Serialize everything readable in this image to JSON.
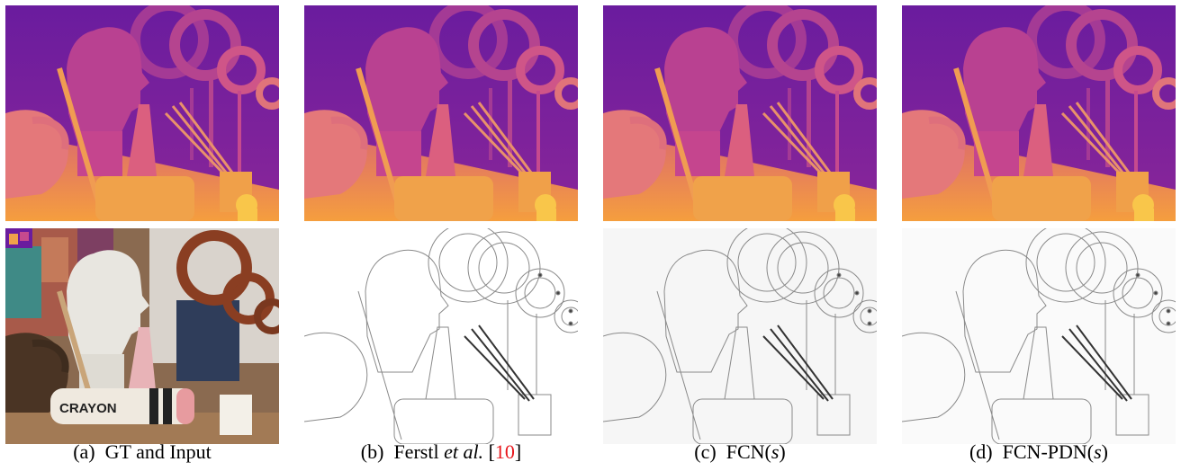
{
  "panels": [
    {
      "label": "(a)",
      "title": "GT and Input"
    },
    {
      "label": "(b)",
      "title_prefix": "Ferstl ",
      "title_italic": "et al.",
      "title_ref_open": " [",
      "ref": "10",
      "title_ref_close": "]"
    },
    {
      "label": "(c)",
      "title_prefix": "FCN(",
      "title_italic": "s",
      "title_suffix": ")"
    },
    {
      "label": "(d)",
      "title_prefix": "FCN-PDN(",
      "title_italic": "s",
      "title_suffix": ")"
    }
  ],
  "photo_text": {
    "crayon": "CRAYON"
  },
  "colors": {
    "depth_far": "#7a1fa2",
    "depth_mid": "#c64a8e",
    "depth_near": "#f2a345",
    "depth_nearest": "#f7c84a",
    "reference": "#e8161c",
    "error_bg": "#ffffff",
    "error_line": "#8a8a8a"
  }
}
